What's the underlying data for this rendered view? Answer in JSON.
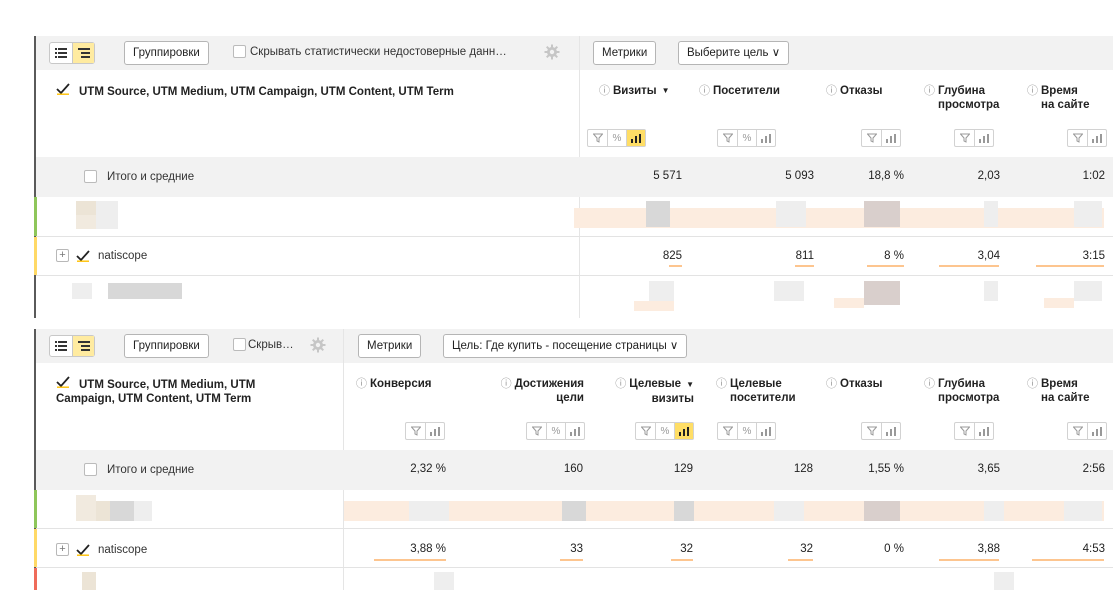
{
  "colors": {
    "accent_yellow": "#ffde66",
    "active_view": "#ffeba0",
    "bar_orange": "#fdc58f",
    "row_green": "#8ec65a",
    "row_yellow": "#ffd966",
    "row_red": "#ef6b5a",
    "header_bg": "#f2f2f2"
  },
  "panel1": {
    "toolbar": {
      "view_list_icon": "list-icon",
      "view_tree_icon": "tree-icon",
      "groupings_label": "Группировки",
      "hide_label": "Скрывать статистически недостоверные данн…",
      "settings_icon": "gear-icon",
      "metrics_label": "Метрики",
      "goal_label": "Выберите цель ∨"
    },
    "dimension_header": "UTM Source, UTM Medium, UTM Campaign, UTM Content, UTM Term",
    "columns": [
      {
        "title": "Визиты",
        "sort": "▼",
        "controls": [
          "filter",
          "percent",
          "chart"
        ],
        "active": "chart"
      },
      {
        "title": "Посетители",
        "controls": [
          "filter",
          "percent",
          "chart"
        ]
      },
      {
        "title": "Отказы",
        "controls": [
          "filter",
          "chart"
        ]
      },
      {
        "title": "Глубина просмотра",
        "line1": "Глубина",
        "line2": "просмотра",
        "controls": [
          "filter",
          "chart"
        ]
      },
      {
        "title": "Время на сайте",
        "line1": "Время",
        "line2": "на сайте",
        "controls": [
          "filter",
          "chart"
        ]
      }
    ],
    "totals": {
      "label": "Итого и средние",
      "values": [
        "5 571",
        "5 093",
        "18,8 %",
        "2,03",
        "1:02"
      ]
    },
    "row": {
      "label": "natiscope",
      "values": [
        "825",
        "811",
        "8 %",
        "3,04",
        "3:15"
      ],
      "bar_fractions": [
        0.15,
        0.16,
        0.43,
        0.75,
        0.8
      ]
    }
  },
  "panel2": {
    "toolbar": {
      "view_list_icon": "list-icon",
      "view_tree_icon": "tree-icon",
      "groupings_label": "Группировки",
      "hide_label": "Скрыв…",
      "settings_icon": "gear-icon",
      "metrics_label": "Метрики",
      "goal_label": "Цель: Где купить - посещение страницы ∨"
    },
    "dimension_header_line1": "UTM Source, UTM Medium, UTM",
    "dimension_header_line2": "Campaign, UTM Content, UTM Term",
    "columns": [
      {
        "title": "Конверсия",
        "controls": [
          "filter",
          "chart"
        ]
      },
      {
        "title": "Достижения цели",
        "line1": "Достижения",
        "line2": "цели",
        "controls": [
          "filter",
          "percent",
          "chart"
        ]
      },
      {
        "title": "Целевые визиты",
        "line1": "Целевые",
        "line2": "визиты",
        "sort": "▼",
        "controls": [
          "filter",
          "percent",
          "chart"
        ],
        "active": "chart"
      },
      {
        "title": "Целевые посетители",
        "line1": "Целевые",
        "line2": "посетители",
        "controls": [
          "filter",
          "percent",
          "chart"
        ]
      },
      {
        "title": "Отказы",
        "controls": [
          "filter",
          "chart"
        ]
      },
      {
        "title": "Глубина просмотра",
        "line1": "Глубина",
        "line2": "просмотра",
        "controls": [
          "filter",
          "chart"
        ]
      },
      {
        "title": "Время на сайте",
        "line1": "Время",
        "line2": "на сайте",
        "controls": [
          "filter",
          "chart"
        ]
      }
    ],
    "totals": {
      "label": "Итого и средние",
      "values": [
        "2,32 %",
        "160",
        "129",
        "128",
        "1,55 %",
        "3,65",
        "2:56"
      ]
    },
    "row": {
      "label": "natiscope",
      "values": [
        "3,88 %",
        "33",
        "32",
        "32",
        "0 %",
        "3,88",
        "4:53"
      ],
      "bar_fractions": [
        0.8,
        0.21,
        0.25,
        0.25,
        0.0,
        0.75,
        0.85
      ]
    }
  },
  "icons": {
    "help": "?",
    "filter": "filter-icon",
    "percent": "%",
    "chart": "bar-chart-icon",
    "expand": "+"
  }
}
